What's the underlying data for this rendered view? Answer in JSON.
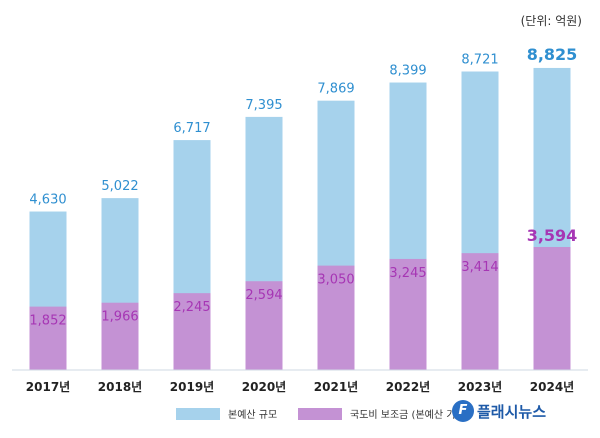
{
  "unit_label": "(단위: 억원)",
  "colors": {
    "total": "#a6d2ec",
    "subsidy": "#c492d4",
    "total_label": "#2f8fd0",
    "subsidy_label": "#a636b4",
    "axis": "#cfd8e3"
  },
  "legend": {
    "total_label": "본예산 규모",
    "subsidy_label": "국도비 보조금 (본예산 기"
  },
  "watermark": {
    "text": "플래시뉴스",
    "icon": "flash-news-logo"
  },
  "chart_data": {
    "type": "bar",
    "title": "",
    "xlabel": "",
    "ylabel": "",
    "unit": "억원",
    "categories": [
      "2017년",
      "2018년",
      "2019년",
      "2020년",
      "2021년",
      "2022년",
      "2023년",
      "2024년"
    ],
    "series": [
      {
        "name": "본예산 규모",
        "values": [
          4630,
          5022,
          6717,
          7395,
          7869,
          8399,
          8721,
          8825
        ],
        "labels": [
          "4,630",
          "5,022",
          "6,717",
          "7,395",
          "7,869",
          "8,399",
          "8,721",
          "8,825"
        ]
      },
      {
        "name": "국도비 보조금 (본예산 기",
        "values": [
          1852,
          1966,
          2245,
          2594,
          3050,
          3245,
          3414,
          3594
        ],
        "labels": [
          "1,852",
          "1,966",
          "2,245",
          "2,594",
          "3,050",
          "3,245",
          "3,414",
          "3,594"
        ]
      }
    ],
    "ylim": [
      0,
      9700
    ],
    "overlay": true,
    "grid": false,
    "legend_position": "bottom"
  }
}
